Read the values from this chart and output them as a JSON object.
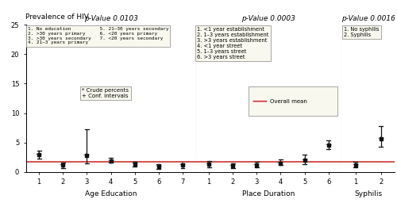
{
  "title": "Prevalence of HIV",
  "overall_mean": 1.75,
  "overall_mean_color": "#cc3333",
  "sections": [
    {
      "name": "Age Education",
      "pvalue": "p-Value 0.0103",
      "x_positions": [
        1,
        2,
        3,
        4,
        5,
        6,
        7
      ],
      "crude_percents": [
        2.9,
        1.1,
        2.8,
        1.9,
        1.3,
        0.9,
        1.1
      ],
      "ci_low": [
        2.2,
        0.65,
        1.5,
        1.55,
        0.85,
        0.5,
        0.65
      ],
      "ci_high": [
        3.6,
        1.55,
        7.2,
        2.35,
        1.75,
        1.3,
        1.5
      ],
      "legend_lines": [
        "1. No education          5. 21–30 years secondary",
        "2. >30 years primary     6. <20 years primary",
        "3. >30 years secondary   7. <20 years secondary",
        "4. 21–3 years primary"
      ]
    },
    {
      "name": "Place Duration",
      "pvalue": "p-Value 0.0003",
      "x_positions": [
        1,
        2,
        3,
        4,
        5,
        6
      ],
      "crude_percents": [
        1.3,
        1.0,
        1.2,
        1.5,
        2.0,
        4.6
      ],
      "ci_low": [
        0.8,
        0.6,
        0.8,
        1.1,
        1.3,
        3.85
      ],
      "ci_high": [
        1.8,
        1.4,
        1.65,
        2.1,
        2.9,
        5.4
      ],
      "legend_lines": [
        "1. <1 year establishment",
        "2. 1–3 years establishment",
        "3. >3 years establishment",
        "4. <1 year street",
        "5. 1–3 years street",
        "6. >3 years street"
      ]
    },
    {
      "name": "Syphilis",
      "pvalue": "p-Value 0.0016",
      "x_positions": [
        1,
        2
      ],
      "crude_percents": [
        1.2,
        5.6
      ],
      "ci_low": [
        0.8,
        4.2
      ],
      "ci_high": [
        1.7,
        7.8
      ],
      "legend_lines": [
        "1. No syphilis",
        "2. Syphilis"
      ]
    }
  ],
  "dot_color": "#336633",
  "ci_color": "#111111",
  "background_color": "#ffffff",
  "crude_legend_text": [
    "* Crude percents",
    "+ Conf. intervals"
  ],
  "overall_legend_text": "Overall mean",
  "yticks": [
    0,
    5,
    10,
    15,
    20,
    25
  ],
  "ylim": [
    0,
    25
  ]
}
